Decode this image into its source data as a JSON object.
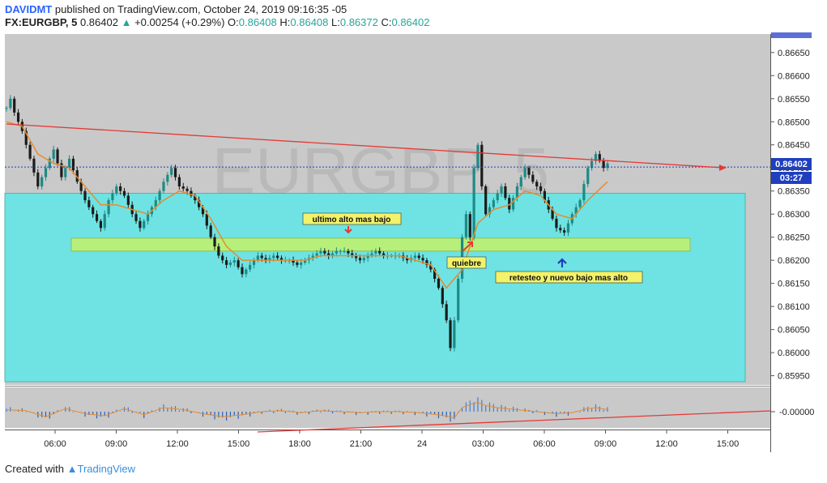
{
  "header": {
    "author": "DAVIDMT",
    "published": "published on TradingView.com, October 24, 2019 09:16:35 -05",
    "symbol": "FX:EURGBP, 5",
    "last": "0.86402",
    "change": "+0.00254 (+0.29%)",
    "o_label": "O:",
    "o_value": "0.86408",
    "h_label": "H:",
    "h_value": "0.86408",
    "l_label": "L:",
    "l_value": "0.86372",
    "c_label": "C:",
    "c_value": "0.86402"
  },
  "footer": {
    "created_with": "Created with",
    "brand": "TradingView"
  },
  "colors": {
    "pane_bg": "#c9c9c9",
    "zone_cyan": "#6fe3e3",
    "zone_green": "#b6f07a",
    "trend_red": "#e53935",
    "price_line": "#1f3fbf",
    "candle_up": "#1d8a86",
    "candle_down": "#1b1b1b",
    "ema": "#e88a2e",
    "label_bg": "#f2f26b",
    "price_tag": "#1f3fbf"
  },
  "chart_data": {
    "type": "candlestick",
    "watermark": "EURGBP, 5",
    "ylim": [
      0.8593,
      0.8669
    ],
    "y_ticks": [
      "0.86650",
      "0.86600",
      "0.86550",
      "0.86500",
      "0.86450",
      "0.86400",
      "0.86350",
      "0.86300",
      "0.86250",
      "0.86200",
      "0.86150",
      "0.86100",
      "0.86050",
      "0.86000",
      "0.85950"
    ],
    "x_ticks": [
      "06:00",
      "09:00",
      "12:00",
      "15:00",
      "18:00",
      "21:00",
      "24",
      "03:00",
      "06:00",
      "09:00",
      "12:00",
      "15:00"
    ],
    "last_price_label": "0.86402",
    "countdown": "03:27",
    "oscillator_label": "-0.00000",
    "annotations": [
      {
        "text": "ultimo alto mas bajo"
      },
      {
        "text": "quiebre"
      },
      {
        "text": "retesteo y nuevo bajo mas alto"
      }
    ],
    "price_path": [
      [
        0,
        0.8653
      ],
      [
        1,
        0.8655
      ],
      [
        2,
        0.8652
      ],
      [
        4,
        0.8648
      ],
      [
        6,
        0.8642
      ],
      [
        8,
        0.8636
      ],
      [
        10,
        0.864
      ],
      [
        12,
        0.8644
      ],
      [
        14,
        0.8638
      ],
      [
        16,
        0.8642
      ],
      [
        18,
        0.8637
      ],
      [
        20,
        0.8633
      ],
      [
        22,
        0.863
      ],
      [
        24,
        0.8627
      ],
      [
        26,
        0.8633
      ],
      [
        28,
        0.8636
      ],
      [
        30,
        0.8634
      ],
      [
        32,
        0.863
      ],
      [
        34,
        0.8627
      ],
      [
        36,
        0.863
      ],
      [
        38,
        0.8633
      ],
      [
        40,
        0.8637
      ],
      [
        42,
        0.864
      ],
      [
        44,
        0.8636
      ],
      [
        46,
        0.8635
      ],
      [
        48,
        0.8633
      ],
      [
        50,
        0.863
      ],
      [
        52,
        0.8625
      ],
      [
        54,
        0.8621
      ],
      [
        56,
        0.8619
      ],
      [
        58,
        0.862
      ],
      [
        60,
        0.8617
      ],
      [
        62,
        0.8619
      ],
      [
        64,
        0.8621
      ],
      [
        66,
        0.862
      ],
      [
        68,
        0.8621
      ],
      [
        70,
        0.862
      ],
      [
        72,
        0.862
      ],
      [
        74,
        0.8619
      ],
      [
        76,
        0.862
      ],
      [
        78,
        0.8621
      ],
      [
        80,
        0.8622
      ],
      [
        82,
        0.8621
      ],
      [
        84,
        0.8622
      ],
      [
        86,
        0.8622
      ],
      [
        88,
        0.8621
      ],
      [
        90,
        0.862
      ],
      [
        92,
        0.8621
      ],
      [
        94,
        0.8622
      ],
      [
        96,
        0.8621
      ],
      [
        98,
        0.8621
      ],
      [
        100,
        0.8621
      ],
      [
        102,
        0.862
      ],
      [
        104,
        0.8621
      ],
      [
        106,
        0.862
      ],
      [
        108,
        0.8618
      ],
      [
        110,
        0.8614
      ],
      [
        112,
        0.8607
      ],
      [
        113,
        0.8601
      ],
      [
        114,
        0.8607
      ],
      [
        116,
        0.8625
      ],
      [
        117,
        0.863
      ],
      [
        118,
        0.8625
      ],
      [
        119,
        0.864
      ],
      [
        120,
        0.8645
      ],
      [
        121,
        0.8636
      ],
      [
        122,
        0.863
      ],
      [
        124,
        0.8633
      ],
      [
        126,
        0.8636
      ],
      [
        128,
        0.8631
      ],
      [
        130,
        0.8636
      ],
      [
        132,
        0.864
      ],
      [
        134,
        0.8637
      ],
      [
        136,
        0.8635
      ],
      [
        138,
        0.8631
      ],
      [
        140,
        0.8627
      ],
      [
        142,
        0.8626
      ],
      [
        144,
        0.863
      ],
      [
        146,
        0.8633
      ],
      [
        148,
        0.864
      ],
      [
        150,
        0.8643
      ],
      [
        152,
        0.864
      ],
      [
        153,
        0.8641
      ]
    ],
    "ema_path": [
      [
        0,
        0.865
      ],
      [
        4,
        0.8649
      ],
      [
        8,
        0.8643
      ],
      [
        12,
        0.8641
      ],
      [
        16,
        0.864
      ],
      [
        20,
        0.8636
      ],
      [
        24,
        0.8632
      ],
      [
        28,
        0.8632
      ],
      [
        32,
        0.8631
      ],
      [
        36,
        0.863
      ],
      [
        40,
        0.8633
      ],
      [
        44,
        0.8635
      ],
      [
        48,
        0.8634
      ],
      [
        52,
        0.8629
      ],
      [
        56,
        0.8623
      ],
      [
        60,
        0.862
      ],
      [
        64,
        0.862
      ],
      [
        68,
        0.862
      ],
      [
        72,
        0.862
      ],
      [
        76,
        0.862
      ],
      [
        80,
        0.8621
      ],
      [
        84,
        0.8621
      ],
      [
        88,
        0.8621
      ],
      [
        92,
        0.8621
      ],
      [
        96,
        0.8621
      ],
      [
        100,
        0.8621
      ],
      [
        104,
        0.862
      ],
      [
        108,
        0.8619
      ],
      [
        112,
        0.8614
      ],
      [
        116,
        0.8618
      ],
      [
        120,
        0.8628
      ],
      [
        124,
        0.8631
      ],
      [
        128,
        0.8632
      ],
      [
        132,
        0.8635
      ],
      [
        136,
        0.8634
      ],
      [
        140,
        0.863
      ],
      [
        144,
        0.8629
      ],
      [
        148,
        0.8633
      ],
      [
        153,
        0.8637
      ]
    ],
    "oscillator": [
      [
        0,
        0.2
      ],
      [
        5,
        0.1
      ],
      [
        10,
        -0.5
      ],
      [
        15,
        0.3
      ],
      [
        20,
        -0.2
      ],
      [
        25,
        -0.4
      ],
      [
        30,
        0.3
      ],
      [
        35,
        -0.3
      ],
      [
        40,
        0.4
      ],
      [
        45,
        0.2
      ],
      [
        50,
        -0.2
      ],
      [
        55,
        -0.5
      ],
      [
        60,
        -0.3
      ],
      [
        65,
        0.0
      ],
      [
        70,
        0.1
      ],
      [
        75,
        -0.1
      ],
      [
        80,
        0.1
      ],
      [
        85,
        0.0
      ],
      [
        90,
        -0.1
      ],
      [
        95,
        0.0
      ],
      [
        100,
        0.0
      ],
      [
        105,
        -0.1
      ],
      [
        110,
        -0.3
      ],
      [
        114,
        -0.6
      ],
      [
        116,
        0.4
      ],
      [
        118,
        0.7
      ],
      [
        120,
        0.9
      ],
      [
        122,
        0.6
      ],
      [
        125,
        0.4
      ],
      [
        130,
        0.2
      ],
      [
        135,
        0.0
      ],
      [
        140,
        -0.2
      ],
      [
        144,
        -0.1
      ],
      [
        148,
        0.3
      ],
      [
        150,
        0.4
      ],
      [
        153,
        0.2
      ]
    ]
  }
}
